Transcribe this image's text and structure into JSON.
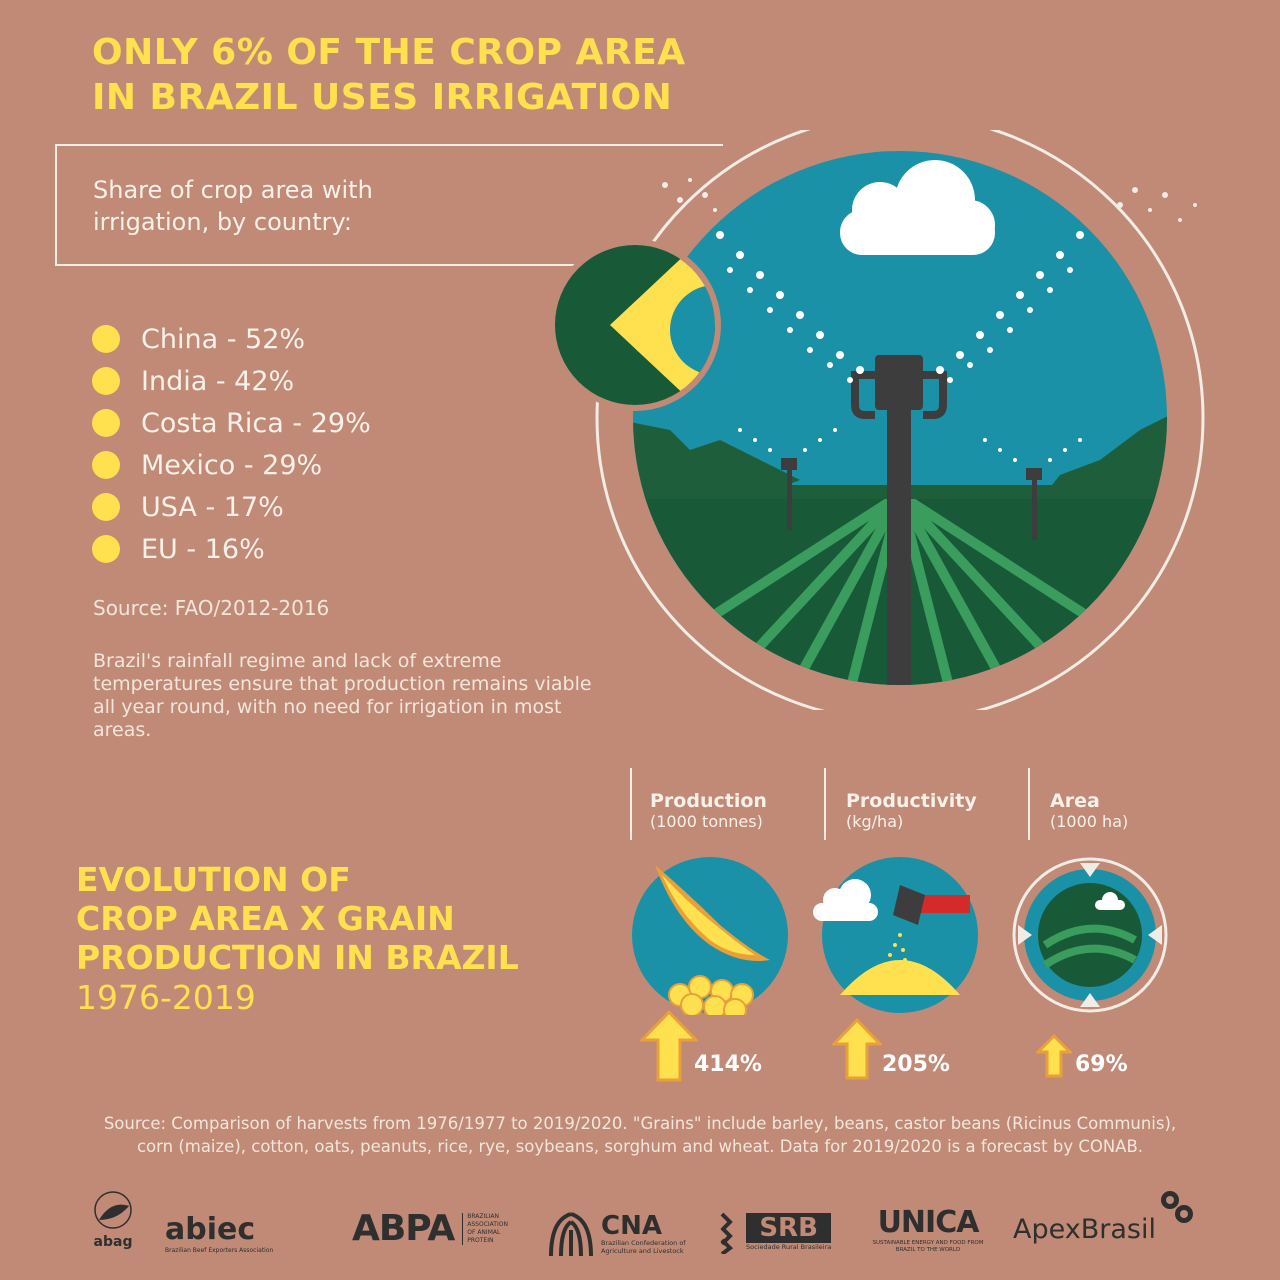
{
  "title": {
    "line1": "ONLY 6% OF THE CROP AREA",
    "line2": "IN BRAZIL USES IRRIGATION"
  },
  "share_heading": "Share of crop area with irrigation, by country:",
  "countries": [
    {
      "label": "China -  52%",
      "value": 52
    },
    {
      "label": "India  - 42%",
      "value": 42
    },
    {
      "label": "Costa  Rica - 29%",
      "value": 29
    },
    {
      "label": "Mexico - 29%",
      "value": 29
    },
    {
      "label": "USA - 17%",
      "value": 17
    },
    {
      "label": "EU - 16%",
      "value": 16
    }
  ],
  "source_fao": "Source: FAO/2012-2016",
  "rainfall_text": "Brazil's rainfall regime and lack of extreme temperatures ensure that production remains viable all year round, with no need for irrigation in most areas.",
  "evolution": {
    "line1": "EVOLUTION OF",
    "line2": "CROP AREA X GRAIN",
    "line3": "PRODUCTION IN BRAZIL",
    "years": "1976-2019"
  },
  "metrics": [
    {
      "name": "Production",
      "unit": "(1000 tonnes)",
      "change": "414%",
      "icon": "soybean-pod-icon"
    },
    {
      "name": "Productivity",
      "unit": "(kg/ha)",
      "change": "205%",
      "icon": "harvester-grain-icon"
    },
    {
      "name": "Area",
      "unit": "(1000 ha)",
      "change": "69%",
      "icon": "field-area-icon"
    }
  ],
  "footer_source": {
    "line1": "Source: Comparison of harvests from 1976/1977 to 2019/2020. \"Grains\" include barley, beans, castor beans (Ricinus Communis),",
    "line2": "corn (maize), cotton, oats, peanuts, rice, rye, soybeans, sorghum and wheat. Data for 2019/2020 is a forecast by CONAB."
  },
  "logos": {
    "abag": "abag",
    "abiec": "abiec",
    "abiec_sub": "Brazilian Beef Exporters Association",
    "abpa": "ABPA",
    "abpa_sub": "BRAZILIAN ASSOCIATION OF ANIMAL PROTEIN",
    "cna": "CNA",
    "cna_sub": "Brazilian Confederation of Agriculture and Livestock",
    "srb": "SRB",
    "srb_sub": "Sociedade Rural Brasileira",
    "unica": "UNICA",
    "unica_sub": "SUSTAINABLE ENERGY AND FOOD FROM BRAZIL TO THE WORLD",
    "apex": "ApexBrasil"
  },
  "colors": {
    "background": "#c08a76",
    "accent_yellow": "#ffe04e",
    "sky_teal": "#1a91a6",
    "field_dark_green": "#185a37",
    "field_light_green": "#3a9d5d"
  }
}
